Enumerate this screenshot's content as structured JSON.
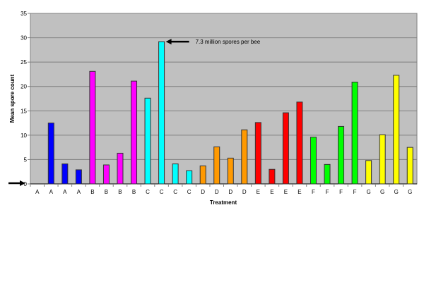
{
  "chart_data": {
    "type": "bar",
    "title": "",
    "xlabel": "Treatment",
    "ylabel": "Mean spore count",
    "ylim": [
      0,
      35
    ],
    "yticks": [
      0,
      5,
      10,
      15,
      20,
      25,
      30,
      35
    ],
    "grid": true,
    "plot_background": "#c0c0c0",
    "categories": [
      "A",
      "A",
      "A",
      "A",
      "B",
      "B",
      "B",
      "B",
      "C",
      "C",
      "C",
      "C",
      "D",
      "D",
      "D",
      "D",
      "E",
      "E",
      "E",
      "E",
      "F",
      "F",
      "F",
      "F",
      "G",
      "G",
      "G",
      "G"
    ],
    "values": [
      0,
      12.5,
      4.1,
      2.9,
      23.1,
      3.9,
      6.3,
      21.1,
      17.6,
      29.2,
      4.1,
      2.7,
      3.7,
      7.6,
      5.3,
      11.1,
      12.6,
      3.0,
      14.6,
      16.8,
      9.6,
      4.0,
      11.8,
      20.9,
      4.8,
      10.1,
      22.3,
      7.5
    ],
    "group_colors": {
      "A": "#0000ff",
      "B": "#ff00ff",
      "C": "#00ffff",
      "D": "#ff9900",
      "E": "#ff0000",
      "F": "#00ff00",
      "G": "#ffff00"
    },
    "annotations": [
      {
        "text": "7.3 million spores per bee",
        "points_to": {
          "category_index": 9,
          "value": 29.2
        }
      },
      {
        "text": "",
        "points_to": {
          "axis": "y",
          "value": 0
        }
      }
    ]
  }
}
